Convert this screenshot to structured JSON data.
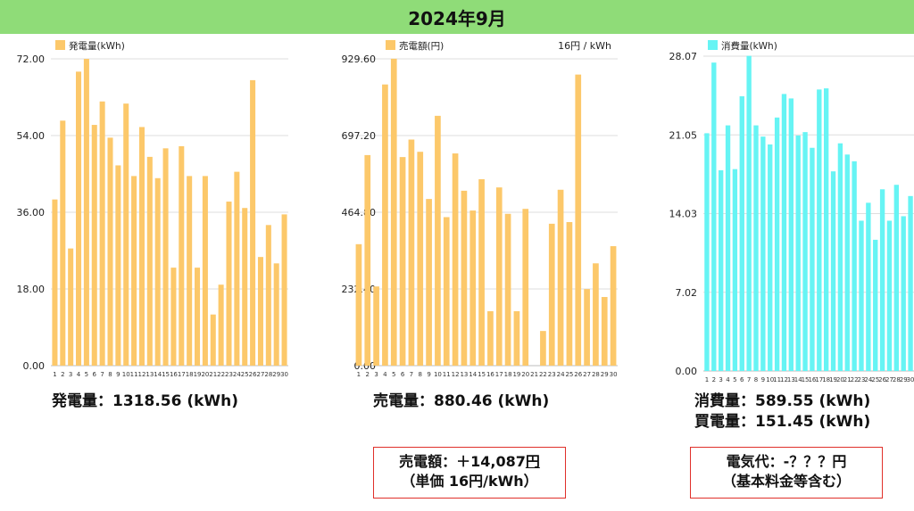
{
  "header": {
    "title": "2024年9月"
  },
  "chart_data": [
    {
      "type": "bar",
      "legend": "発電量(kWh)",
      "color": "#fcc86a",
      "note": "",
      "categories": [
        "1",
        "2",
        "3",
        "4",
        "5",
        "6",
        "7",
        "8",
        "9",
        "10",
        "11",
        "12",
        "13",
        "14",
        "15",
        "16",
        "17",
        "18",
        "19",
        "20",
        "21",
        "22",
        "23",
        "24",
        "25",
        "26",
        "27",
        "28",
        "29",
        "30"
      ],
      "values": [
        39.0,
        57.5,
        27.5,
        69.0,
        72.0,
        56.5,
        62.0,
        53.5,
        47.0,
        61.5,
        44.5,
        56.0,
        49.0,
        44.0,
        51.0,
        23.0,
        51.5,
        44.5,
        23.0,
        44.5,
        12.0,
        19.0,
        38.5,
        45.5,
        37.0,
        67.0,
        25.5,
        33.0,
        24.0,
        35.5
      ],
      "yticks": [
        "0.00",
        "18.00",
        "36.00",
        "54.00",
        "72.00"
      ],
      "ylim": [
        0,
        72
      ]
    },
    {
      "type": "bar",
      "legend": "売電額(円)",
      "color": "#fcc86a",
      "note": "16円 / kWh",
      "categories": [
        "1",
        "2",
        "3",
        "4",
        "5",
        "6",
        "7",
        "8",
        "9",
        "10",
        "11",
        "12",
        "13",
        "14",
        "15",
        "16",
        "17",
        "18",
        "19",
        "20",
        "21",
        "22",
        "23",
        "24",
        "25",
        "26",
        "27",
        "28",
        "29",
        "30"
      ],
      "values": [
        368,
        638,
        240,
        852,
        930,
        632,
        685,
        648,
        505,
        757,
        450,
        643,
        530,
        470,
        565,
        165,
        540,
        460,
        165,
        475,
        0,
        105,
        430,
        533,
        435,
        882,
        232,
        310,
        208,
        362
      ],
      "yticks": [
        "0.00",
        "232.40",
        "464.80",
        "697.20",
        "929.60"
      ],
      "ylim": [
        0,
        929.6
      ]
    },
    {
      "type": "bar",
      "legend": "消費量(kWh)",
      "color": "#66f4f4",
      "note": "",
      "categories": [
        "1",
        "2",
        "3",
        "4",
        "5",
        "6",
        "7",
        "8",
        "9",
        "10",
        "11",
        "12",
        "13",
        "14",
        "15",
        "16",
        "17",
        "18",
        "19",
        "20",
        "21",
        "22",
        "23",
        "24",
        "25",
        "26",
        "27",
        "28",
        "29",
        "30"
      ],
      "values": [
        21.2,
        27.5,
        17.9,
        21.9,
        18.0,
        24.5,
        28.1,
        21.9,
        20.9,
        20.2,
        22.6,
        24.7,
        24.3,
        21.0,
        21.3,
        19.9,
        25.1,
        25.2,
        17.8,
        20.3,
        19.3,
        18.7,
        13.4,
        15.0,
        11.7,
        16.2,
        13.4,
        16.6,
        13.8,
        15.6
      ],
      "yticks": [
        "0.00",
        "7.02",
        "14.03",
        "21.05",
        "28.07"
      ],
      "ylim": [
        0,
        28.07
      ]
    }
  ],
  "summaries": {
    "generation": "発電量：1318.56 (kWh)",
    "sold": "売電量：880.46 (kWh)",
    "consumption": "消費量：589.55 (kWh)",
    "purchased": "買電量：151.45 (kWh)"
  },
  "boxes": {
    "sales_line1_prefix": "売電額：＋14,087",
    "sales_line1_unit": "円",
    "sales_line2": "（単価 16円/kWh）",
    "bill_line1": "電気代：-？？？円",
    "bill_line2": "（基本料金等含む）"
  }
}
